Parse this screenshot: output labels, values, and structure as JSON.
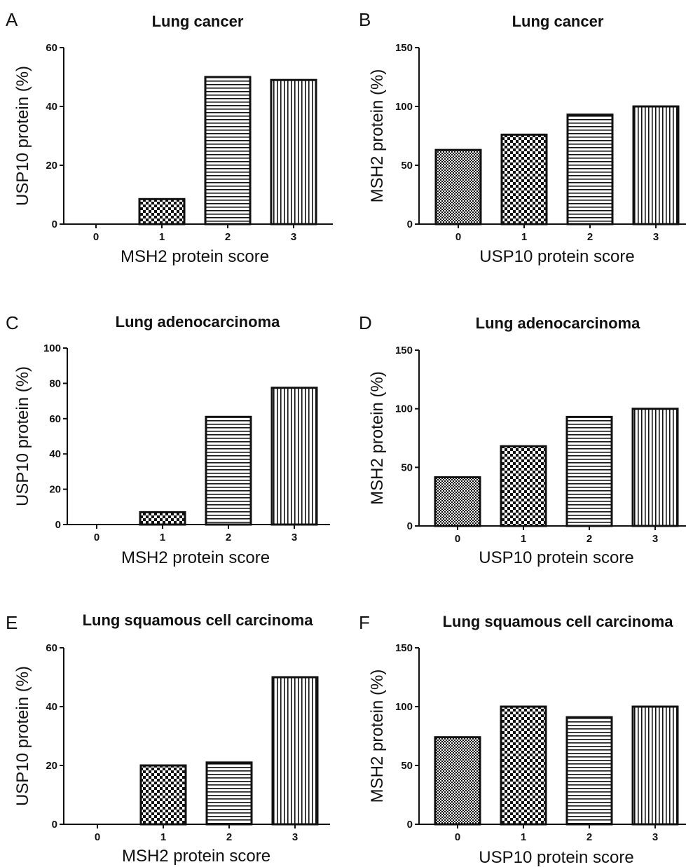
{
  "chart_data": [
    {
      "panel": "A",
      "type": "bar",
      "title": "Lung cancer",
      "xlabel": "MSH2 protein score",
      "ylabel": "USP10 protein (%)",
      "categories": [
        "0",
        "1",
        "2",
        "3"
      ],
      "values": [
        0,
        8.5,
        50,
        49
      ],
      "ylim": [
        0,
        60
      ],
      "yticks": [
        "0",
        "20",
        "40",
        "60"
      ],
      "patterns": [
        "none",
        "checker",
        "horizontal",
        "vertical"
      ]
    },
    {
      "panel": "B",
      "type": "bar",
      "title": "Lung cancer",
      "xlabel": "USP10 protein score",
      "ylabel": "MSH2 protein (%)",
      "categories": [
        "0",
        "1",
        "2",
        "3"
      ],
      "values": [
        63,
        76,
        93,
        100
      ],
      "ylim": [
        0,
        150
      ],
      "yticks": [
        "0",
        "50",
        "100",
        "150"
      ],
      "patterns": [
        "fine-checker",
        "checker",
        "horizontal",
        "vertical"
      ]
    },
    {
      "panel": "C",
      "type": "bar",
      "title": "Lung adenocarcinoma",
      "xlabel": "MSH2 protein score",
      "ylabel": "USP10 protein (%)",
      "categories": [
        "0",
        "1",
        "2",
        "3"
      ],
      "values": [
        0,
        7,
        61,
        77.5
      ],
      "ylim": [
        0,
        100
      ],
      "yticks": [
        "0",
        "20",
        "40",
        "60",
        "80",
        "100"
      ],
      "patterns": [
        "none",
        "checker",
        "horizontal",
        "vertical"
      ]
    },
    {
      "panel": "D",
      "type": "bar",
      "title": "Lung adenocarcinoma",
      "xlabel": "USP10 protein score",
      "ylabel": "MSH2 protein (%)",
      "categories": [
        "0",
        "1",
        "2",
        "3"
      ],
      "values": [
        41.5,
        68,
        93,
        100
      ],
      "ylim": [
        0,
        150
      ],
      "yticks": [
        "0",
        "50",
        "100",
        "150"
      ],
      "patterns": [
        "fine-checker",
        "checker",
        "horizontal",
        "vertical"
      ]
    },
    {
      "panel": "E",
      "type": "bar",
      "title": "Lung squamous cell carcinoma",
      "xlabel": "MSH2 protein score",
      "ylabel": "USP10 protein (%)",
      "categories": [
        "0",
        "1",
        "2",
        "3"
      ],
      "values": [
        0,
        20,
        21,
        50
      ],
      "ylim": [
        0,
        60
      ],
      "yticks": [
        "0",
        "20",
        "40",
        "60"
      ],
      "patterns": [
        "none",
        "checker",
        "horizontal",
        "vertical"
      ]
    },
    {
      "panel": "F",
      "type": "bar",
      "title": "Lung squamous cell carcinoma",
      "xlabel": "USP10 protein score",
      "ylabel": "MSH2 protein (%)",
      "categories": [
        "0",
        "1",
        "2",
        "3"
      ],
      "values": [
        74,
        100,
        91,
        100
      ],
      "ylim": [
        0,
        150
      ],
      "yticks": [
        "0",
        "50",
        "100",
        "150"
      ],
      "patterns": [
        "fine-checker",
        "checker",
        "horizontal",
        "vertical"
      ]
    }
  ],
  "colors": {
    "ink": "#111111",
    "background": "#ffffff"
  }
}
